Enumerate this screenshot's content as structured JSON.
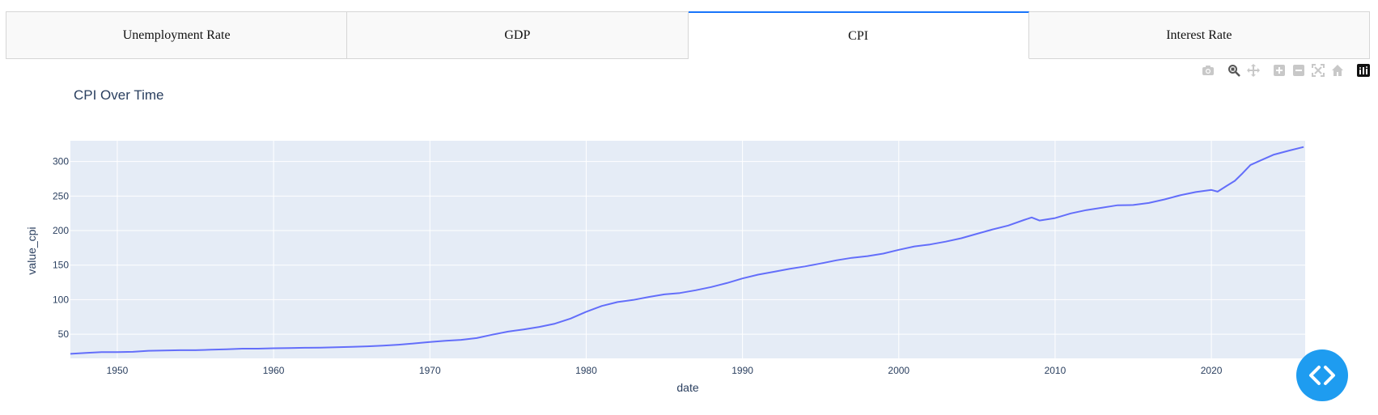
{
  "tabs": [
    {
      "label": "Unemployment Rate",
      "selected": false
    },
    {
      "label": "GDP",
      "selected": false
    },
    {
      "label": "CPI",
      "selected": true
    },
    {
      "label": "Interest Rate",
      "selected": false
    }
  ],
  "modebar": {
    "buttons": [
      "camera-icon",
      "zoom-icon",
      "pan-icon",
      "zoom-in-icon",
      "zoom-out-icon",
      "autoscale-icon",
      "home-icon",
      "plotly-logo-icon"
    ]
  },
  "colors": {
    "plot_bg": "#E5ECF6",
    "line": "#636EFA",
    "tab_accent": "#1975FA",
    "fab": "#1E9CF0",
    "title": "#2A3F5F"
  },
  "chart_data": {
    "type": "line",
    "title": "CPI Over Time",
    "xlabel": "date",
    "ylabel": "value_cpi",
    "xlim": [
      1947,
      2026
    ],
    "ylim": [
      15,
      330
    ],
    "x_ticks": [
      1950,
      1960,
      1970,
      1980,
      1990,
      2000,
      2010,
      2020
    ],
    "y_ticks": [
      50,
      100,
      150,
      200,
      250,
      300
    ],
    "grid": true,
    "series": [
      {
        "x": [
          1947,
          1948,
          1949,
          1950,
          1951,
          1952,
          1953,
          1954,
          1955,
          1956,
          1957,
          1958,
          1959,
          1960,
          1961,
          1962,
          1963,
          1964,
          1965,
          1966,
          1967,
          1968,
          1969,
          1970,
          1971,
          1972,
          1973,
          1974,
          1975,
          1976,
          1977,
          1978,
          1979,
          1980,
          1981,
          1982,
          1983,
          1984,
          1985,
          1986,
          1987,
          1988,
          1989,
          1990,
          1991,
          1992,
          1993,
          1994,
          1995,
          1996,
          1997,
          1998,
          1999,
          2000,
          2001,
          2002,
          2003,
          2004,
          2005,
          2006,
          2007,
          2008,
          2008.5,
          2009,
          2010,
          2011,
          2012,
          2013,
          2014,
          2015,
          2016,
          2017,
          2018,
          2019,
          2020,
          2020.4,
          2021,
          2021.5,
          2022,
          2022.5,
          2023,
          2024,
          2025,
          2025.9
        ],
        "y": [
          21.5,
          23.0,
          24.0,
          24.0,
          24.5,
          26.0,
          26.5,
          26.8,
          26.8,
          27.5,
          28.1,
          29.0,
          29.1,
          29.6,
          29.9,
          30.3,
          30.6,
          31.0,
          31.6,
          32.5,
          33.4,
          34.8,
          36.7,
          38.8,
          40.5,
          41.8,
          44.4,
          49.3,
          53.8,
          56.9,
          60.6,
          65.2,
          72.6,
          82.4,
          90.9,
          96.5,
          99.6,
          103.9,
          107.6,
          109.6,
          113.6,
          118.3,
          124.0,
          130.7,
          136.2,
          140.3,
          144.5,
          148.2,
          152.4,
          156.9,
          160.5,
          163.0,
          166.6,
          172.2,
          177.1,
          179.9,
          184.0,
          188.9,
          195.3,
          201.6,
          207.3,
          215.3,
          219.0,
          214.5,
          218.1,
          224.9,
          229.6,
          233.0,
          236.7,
          237.0,
          240.0,
          245.1,
          251.1,
          255.7,
          258.8,
          256.4,
          265.0,
          272.0,
          283.0,
          295.0,
          300.0,
          310.0,
          316.0,
          321.0
        ]
      }
    ]
  }
}
